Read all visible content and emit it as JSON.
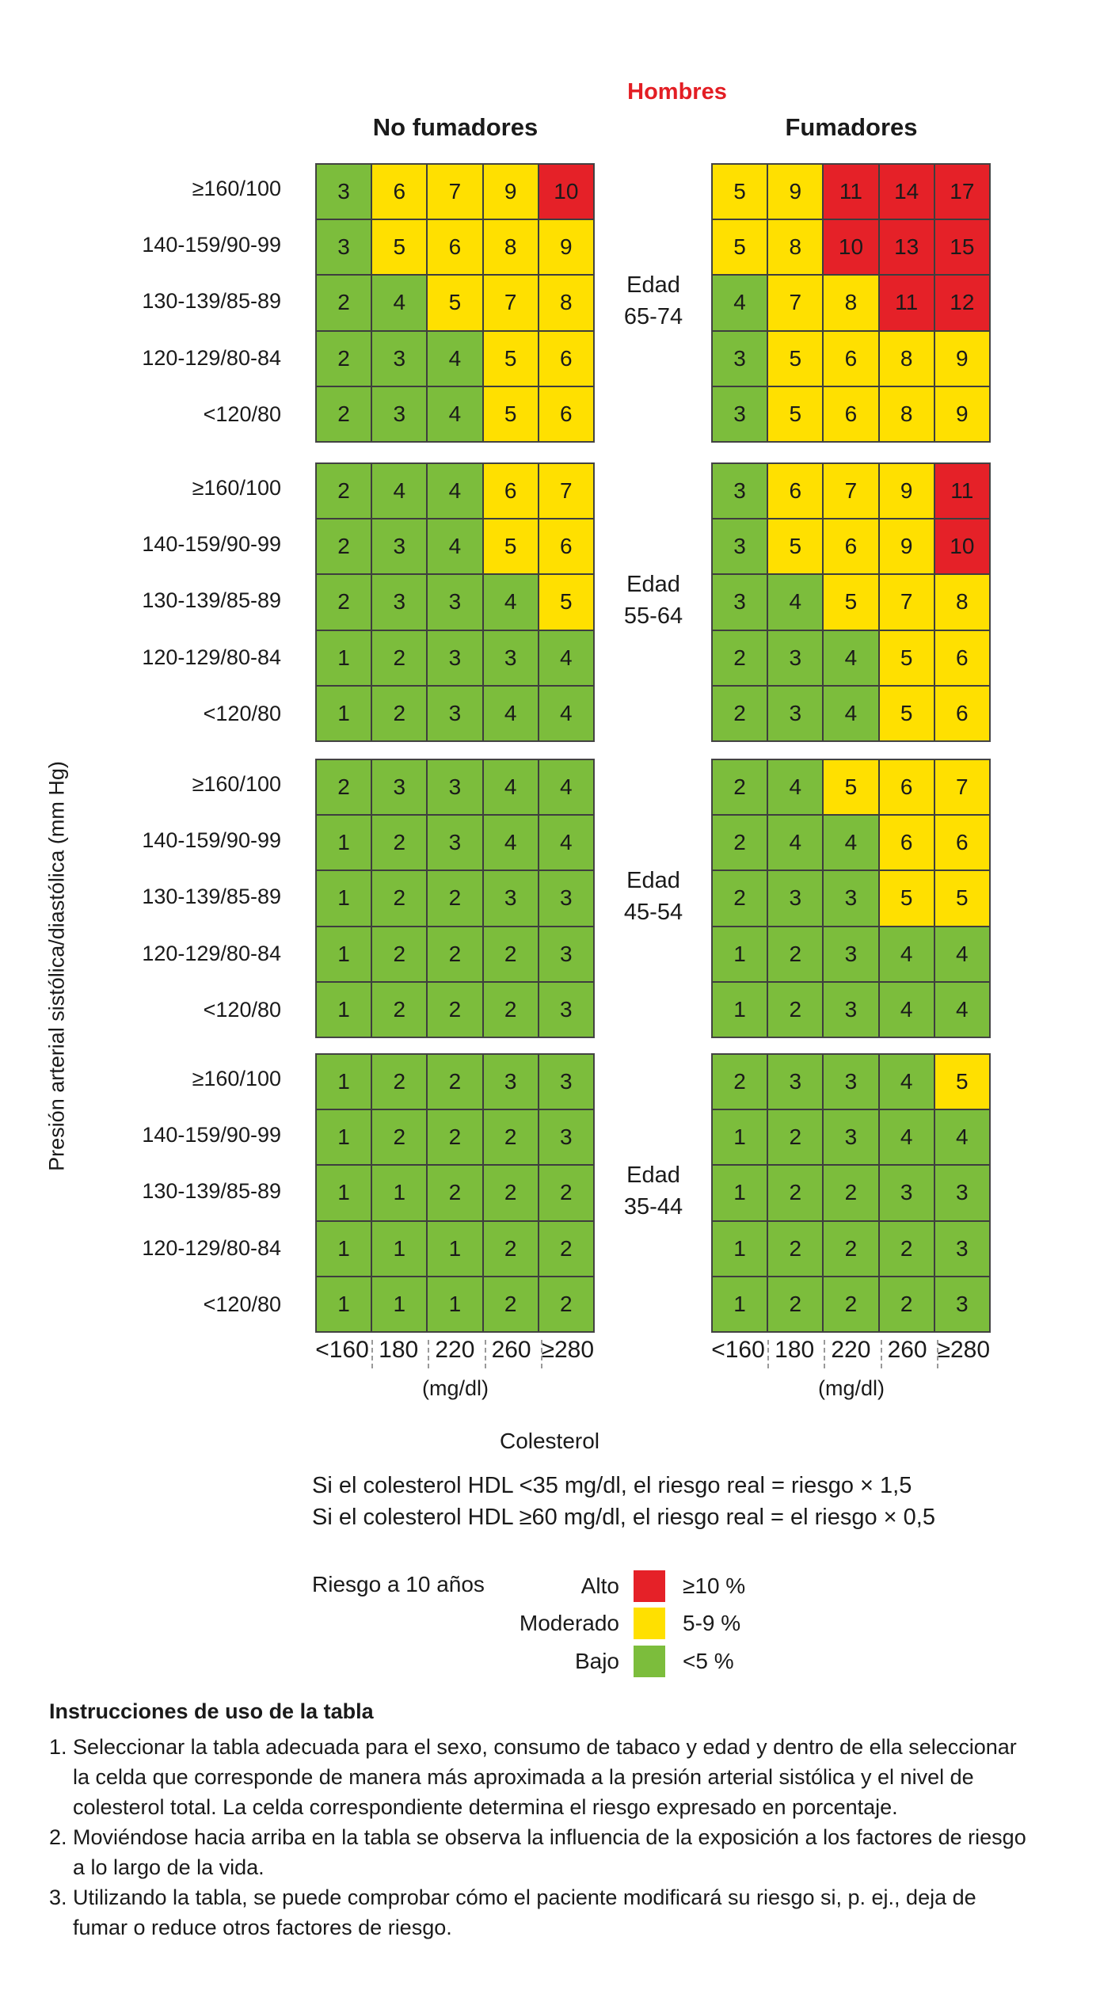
{
  "chart_data": {
    "type": "heatmap",
    "title": "Hombres",
    "groups": [
      "No fumadores",
      "Fumadores"
    ],
    "ylabel": "Presión arterial sistólica/diastólica (mm Hg)",
    "xlabel": "Colesterol",
    "x_unit": "(mg/dl)",
    "x_categories": [
      "<160",
      "180",
      "220",
      "260",
      "≥280"
    ],
    "y_categories": [
      "≥160/100",
      "140-159/90-99",
      "130-139/85-89",
      "120-129/80-84",
      "<120/80"
    ],
    "age_prefix": "Edad",
    "ages": [
      {
        "label": "65-74",
        "no_fumadores": [
          [
            3,
            6,
            7,
            9,
            10
          ],
          [
            3,
            5,
            6,
            8,
            9
          ],
          [
            2,
            4,
            5,
            7,
            8
          ],
          [
            2,
            3,
            4,
            5,
            6
          ],
          [
            2,
            3,
            4,
            5,
            6
          ]
        ],
        "fumadores": [
          [
            5,
            9,
            11,
            14,
            17
          ],
          [
            5,
            8,
            10,
            13,
            15
          ],
          [
            4,
            7,
            8,
            11,
            12
          ],
          [
            3,
            5,
            6,
            8,
            9
          ],
          [
            3,
            5,
            6,
            8,
            9
          ]
        ]
      },
      {
        "label": "55-64",
        "no_fumadores": [
          [
            2,
            4,
            4,
            6,
            7
          ],
          [
            2,
            3,
            4,
            5,
            6
          ],
          [
            2,
            3,
            3,
            4,
            5
          ],
          [
            1,
            2,
            3,
            3,
            4
          ],
          [
            1,
            2,
            3,
            4,
            4
          ]
        ],
        "fumadores": [
          [
            3,
            6,
            7,
            9,
            11
          ],
          [
            3,
            5,
            6,
            9,
            10
          ],
          [
            3,
            4,
            5,
            7,
            8
          ],
          [
            2,
            3,
            4,
            5,
            6
          ],
          [
            2,
            3,
            4,
            5,
            6
          ]
        ]
      },
      {
        "label": "45-54",
        "no_fumadores": [
          [
            2,
            3,
            3,
            4,
            4
          ],
          [
            1,
            2,
            3,
            4,
            4
          ],
          [
            1,
            2,
            2,
            3,
            3
          ],
          [
            1,
            2,
            2,
            2,
            3
          ],
          [
            1,
            2,
            2,
            2,
            3
          ]
        ],
        "fumadores": [
          [
            2,
            4,
            5,
            6,
            7
          ],
          [
            2,
            4,
            4,
            6,
            6
          ],
          [
            2,
            3,
            3,
            5,
            5
          ],
          [
            1,
            2,
            3,
            4,
            4
          ],
          [
            1,
            2,
            3,
            4,
            4
          ]
        ]
      },
      {
        "label": "35-44",
        "no_fumadores": [
          [
            1,
            2,
            2,
            3,
            3
          ],
          [
            1,
            2,
            2,
            2,
            3
          ],
          [
            1,
            1,
            2,
            2,
            2
          ],
          [
            1,
            1,
            1,
            2,
            2
          ],
          [
            1,
            1,
            1,
            2,
            2
          ]
        ],
        "fumadores": [
          [
            2,
            3,
            3,
            4,
            5
          ],
          [
            1,
            2,
            3,
            4,
            4
          ],
          [
            1,
            2,
            2,
            3,
            3
          ],
          [
            1,
            2,
            2,
            2,
            3
          ],
          [
            1,
            2,
            2,
            2,
            3
          ]
        ]
      }
    ],
    "notes": [
      "Si el colesterol HDL <35 mg/dl, el riesgo real = riesgo × 1,5",
      "Si el colesterol HDL ≥60 mg/dl, el riesgo real = el riesgo × 0,5"
    ],
    "legend": {
      "title": "Riesgo a 10 años",
      "items": [
        {
          "label": "Alto",
          "range": "≥10 %",
          "color": "#e52128"
        },
        {
          "label": "Moderado",
          "range": "5-9 %",
          "color": "#ffe000"
        },
        {
          "label": "Bajo",
          "range": "<5 %",
          "color": "#7cbd3c"
        }
      ]
    }
  },
  "instructions": {
    "title": "Instrucciones de uso de la tabla",
    "items": [
      {
        "num": "1.",
        "lines": [
          "Seleccionar la tabla adecuada para el sexo, consumo de tabaco y edad y dentro de ella seleccionar",
          "la celda que corresponde de manera más aproximada a la presión arterial sistólica y el nivel de",
          "colesterol total. La celda correspondiente determina el riesgo expresado en porcentaje."
        ]
      },
      {
        "num": "2.",
        "lines": [
          "Moviéndose hacia arriba en la tabla se observa la influencia de la exposición a los factores de riesgo",
          "a lo largo de la vida."
        ]
      },
      {
        "num": "3.",
        "lines": [
          "Utilizando la tabla, se puede comprobar cómo el paciente modificará su riesgo si, p. ej., deja de",
          "fumar o reduce otros factores de riesgo."
        ]
      }
    ]
  }
}
